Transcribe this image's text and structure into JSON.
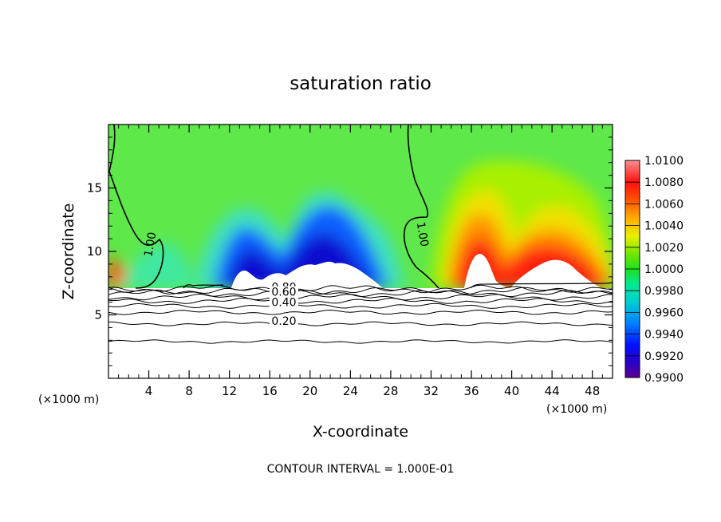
{
  "chart_data": {
    "type": "heatmap",
    "title": "saturation ratio",
    "xlabel": "X-coordinate",
    "ylabel": "Z-coordinate",
    "x_unit_left": "(×1000 m)",
    "x_unit_right": "(×1000 m)",
    "footer": "CONTOUR INTERVAL = 1.000E-01",
    "xlim": [
      0,
      50
    ],
    "ylim": [
      0,
      20
    ],
    "x_ticks": [
      4,
      8,
      12,
      16,
      20,
      24,
      28,
      32,
      36,
      40,
      44,
      48
    ],
    "x_tick_labels": [
      "4",
      "8",
      "12",
      "16",
      "20",
      "24",
      "28",
      "32",
      "36",
      "40",
      "44",
      "48"
    ],
    "y_ticks": [
      5,
      10,
      15
    ],
    "y_tick_labels": [
      "5",
      "10",
      "15"
    ],
    "colorbar": {
      "min": 0.99,
      "max": 1.01,
      "labels": [
        "1.0100",
        "1.0080",
        "1.0060",
        "1.0040",
        "1.0020",
        "1.0000",
        "0.9980",
        "0.9960",
        "0.9940",
        "0.9920",
        "0.9900"
      ]
    },
    "contour_labels": [
      {
        "text": "1.00",
        "x": 4.5,
        "z": 10.5
      },
      {
        "text": "1.00",
        "x": 30.8,
        "z": 11.3
      },
      {
        "text": "0.80",
        "x": 17.4,
        "z": 6.9
      },
      {
        "text": "0.60",
        "x": 17.4,
        "z": 6.5
      },
      {
        "text": "0.40",
        "x": 17.4,
        "z": 5.7
      },
      {
        "text": "0.20",
        "x": 17.4,
        "z": 4.2
      }
    ],
    "contour_levels_lower": [
      2.9,
      4.3,
      5.2,
      5.7,
      6.1,
      6.4,
      6.7,
      6.9,
      7.05
    ]
  }
}
